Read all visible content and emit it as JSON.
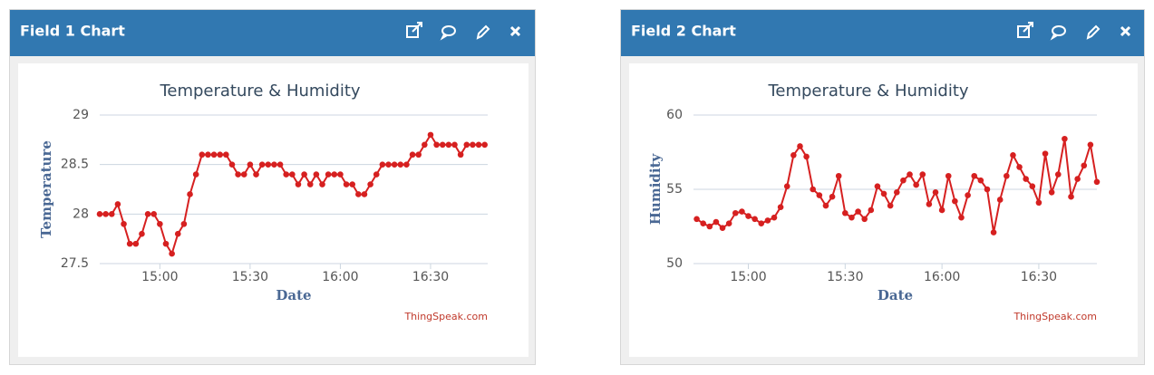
{
  "panels": [
    {
      "title": "Field 1 Chart"
    },
    {
      "title": "Field 2 Chart"
    }
  ],
  "chart_data": [
    {
      "type": "line",
      "title": "Temperature & Humidity",
      "x_label": "Date",
      "y_label": "Temperature",
      "credit": "ThingSpeak.com",
      "color": "#d62020",
      "grid": true,
      "xlim": [
        "14:40",
        "16:49"
      ],
      "xticks": [
        "15:00",
        "15:30",
        "16:00",
        "16:30"
      ],
      "ylim": [
        27.5,
        29
      ],
      "yticks": [
        27.5,
        28,
        28.5,
        29
      ],
      "x": [
        "14:40",
        "14:42",
        "14:44",
        "14:46",
        "14:48",
        "14:50",
        "14:52",
        "14:54",
        "14:56",
        "14:58",
        "15:00",
        "15:02",
        "15:04",
        "15:06",
        "15:08",
        "15:10",
        "15:12",
        "15:14",
        "15:16",
        "15:18",
        "15:20",
        "15:22",
        "15:24",
        "15:26",
        "15:28",
        "15:30",
        "15:32",
        "15:34",
        "15:36",
        "15:38",
        "15:40",
        "15:42",
        "15:44",
        "15:46",
        "15:48",
        "15:50",
        "15:52",
        "15:54",
        "15:56",
        "15:58",
        "16:00",
        "16:02",
        "16:04",
        "16:06",
        "16:08",
        "16:10",
        "16:12",
        "16:14",
        "16:16",
        "16:18",
        "16:20",
        "16:22",
        "16:24",
        "16:26",
        "16:28",
        "16:30",
        "16:32",
        "16:34",
        "16:36",
        "16:38",
        "16:40",
        "16:42",
        "16:44",
        "16:46",
        "16:48"
      ],
      "values": [
        28.0,
        28.0,
        28.0,
        28.1,
        27.9,
        27.7,
        27.7,
        27.8,
        28.0,
        28.0,
        27.9,
        27.7,
        27.6,
        27.8,
        27.9,
        28.2,
        28.4,
        28.6,
        28.6,
        28.6,
        28.6,
        28.6,
        28.5,
        28.4,
        28.4,
        28.5,
        28.4,
        28.5,
        28.5,
        28.5,
        28.5,
        28.4,
        28.4,
        28.3,
        28.4,
        28.3,
        28.4,
        28.3,
        28.4,
        28.4,
        28.4,
        28.3,
        28.3,
        28.2,
        28.2,
        28.3,
        28.4,
        28.5,
        28.5,
        28.5,
        28.5,
        28.5,
        28.6,
        28.6,
        28.7,
        28.8,
        28.7,
        28.7,
        28.7,
        28.7,
        28.6,
        28.7,
        28.7,
        28.7,
        28.7
      ]
    },
    {
      "type": "line",
      "title": "Temperature & Humidity",
      "x_label": "Date",
      "y_label": "Humidity",
      "credit": "ThingSpeak.com",
      "color": "#d62020",
      "grid": true,
      "xlim": [
        "14:43",
        "16:48"
      ],
      "xticks": [
        "15:00",
        "15:30",
        "16:00",
        "16:30"
      ],
      "ylim": [
        50,
        60
      ],
      "yticks": [
        50,
        55,
        60
      ],
      "x": [
        "14:44",
        "14:46",
        "14:48",
        "14:50",
        "14:52",
        "14:54",
        "14:56",
        "14:58",
        "15:00",
        "15:02",
        "15:04",
        "15:06",
        "15:08",
        "15:10",
        "15:12",
        "15:14",
        "15:16",
        "15:18",
        "15:20",
        "15:22",
        "15:24",
        "15:26",
        "15:28",
        "15:30",
        "15:32",
        "15:34",
        "15:36",
        "15:38",
        "15:40",
        "15:42",
        "15:44",
        "15:46",
        "15:48",
        "15:50",
        "15:52",
        "15:54",
        "15:56",
        "15:58",
        "16:00",
        "16:02",
        "16:04",
        "16:06",
        "16:08",
        "16:10",
        "16:12",
        "16:14",
        "16:16",
        "16:18",
        "16:20",
        "16:22",
        "16:24",
        "16:26",
        "16:28",
        "16:30",
        "16:32",
        "16:34",
        "16:36",
        "16:38",
        "16:40",
        "16:42",
        "16:44",
        "16:46",
        "16:48"
      ],
      "values": [
        53.0,
        52.7,
        52.5,
        52.8,
        52.4,
        52.7,
        53.4,
        53.5,
        53.2,
        53.0,
        52.7,
        52.9,
        53.1,
        53.8,
        55.2,
        57.3,
        57.9,
        57.2,
        55.0,
        54.6,
        53.9,
        54.5,
        55.9,
        53.4,
        53.1,
        53.5,
        53.0,
        53.6,
        55.2,
        54.7,
        53.9,
        54.8,
        55.6,
        56.0,
        55.3,
        56.0,
        54.0,
        54.8,
        53.6,
        55.9,
        54.2,
        53.1,
        54.6,
        55.9,
        55.6,
        55.0,
        52.1,
        54.3,
        55.9,
        57.3,
        56.5,
        55.7,
        55.2,
        54.1,
        57.4,
        54.8,
        56.0,
        58.4,
        54.5,
        55.7,
        56.6,
        58.0,
        55.5
      ]
    }
  ]
}
